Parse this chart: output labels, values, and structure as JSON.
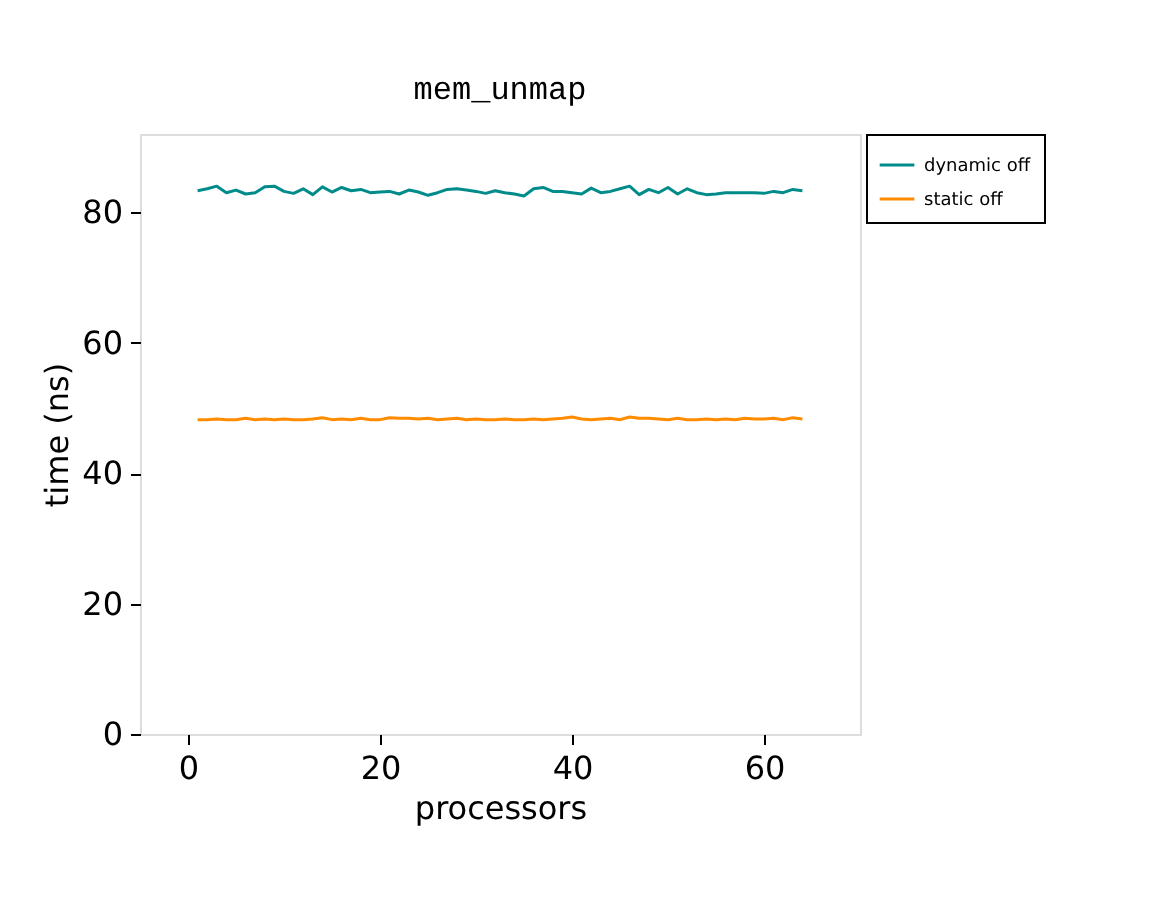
{
  "chart_data": {
    "type": "line",
    "title": "mem_unmap",
    "xlabel": "processors",
    "ylabel": "time (ns)",
    "x": [
      1,
      2,
      3,
      4,
      5,
      6,
      7,
      8,
      9,
      10,
      11,
      12,
      13,
      14,
      15,
      16,
      17,
      18,
      19,
      20,
      21,
      22,
      23,
      24,
      25,
      26,
      27,
      28,
      29,
      30,
      31,
      32,
      33,
      34,
      35,
      36,
      37,
      38,
      39,
      40,
      41,
      42,
      43,
      44,
      45,
      46,
      47,
      48,
      49,
      50,
      51,
      52,
      53,
      54,
      55,
      56,
      57,
      58,
      59,
      60,
      61,
      62,
      63,
      64
    ],
    "series": [
      {
        "name": "dynamic off",
        "color": "#008b8b",
        "values": [
          83.3,
          83.6,
          84.0,
          83.0,
          83.4,
          82.8,
          83.0,
          83.9,
          84.0,
          83.2,
          82.9,
          83.6,
          82.7,
          83.9,
          83.1,
          83.8,
          83.3,
          83.5,
          83.0,
          83.1,
          83.2,
          82.8,
          83.4,
          83.1,
          82.6,
          83.0,
          83.5,
          83.6,
          83.4,
          83.2,
          82.9,
          83.3,
          83.0,
          82.8,
          82.5,
          83.6,
          83.8,
          83.2,
          83.2,
          83.0,
          82.8,
          83.7,
          83.0,
          83.2,
          83.6,
          84.0,
          82.7,
          83.5,
          83.0,
          83.8,
          82.8,
          83.6,
          83.0,
          82.7,
          82.8,
          83.0,
          83.0,
          83.0,
          83.0,
          82.9,
          83.2,
          83.0,
          83.5,
          83.3
        ]
      },
      {
        "name": "static off",
        "color": "#ff8c00",
        "values": [
          48.2,
          48.2,
          48.3,
          48.2,
          48.2,
          48.4,
          48.2,
          48.3,
          48.2,
          48.3,
          48.2,
          48.2,
          48.3,
          48.5,
          48.2,
          48.3,
          48.2,
          48.4,
          48.2,
          48.2,
          48.5,
          48.4,
          48.4,
          48.3,
          48.4,
          48.2,
          48.3,
          48.4,
          48.2,
          48.3,
          48.2,
          48.2,
          48.3,
          48.2,
          48.2,
          48.3,
          48.2,
          48.3,
          48.4,
          48.6,
          48.3,
          48.2,
          48.3,
          48.4,
          48.2,
          48.6,
          48.4,
          48.4,
          48.3,
          48.2,
          48.4,
          48.2,
          48.2,
          48.3,
          48.2,
          48.3,
          48.2,
          48.4,
          48.3,
          48.3,
          48.4,
          48.2,
          48.5,
          48.3
        ]
      }
    ],
    "xlim": [
      -5,
      70
    ],
    "xticks": [
      0,
      20,
      40,
      60
    ],
    "ylim": [
      0,
      92
    ],
    "yticks": [
      0,
      20,
      40,
      60,
      80
    ],
    "grid": false,
    "legend": "top right",
    "marker": "none",
    "line_style": "solid"
  }
}
